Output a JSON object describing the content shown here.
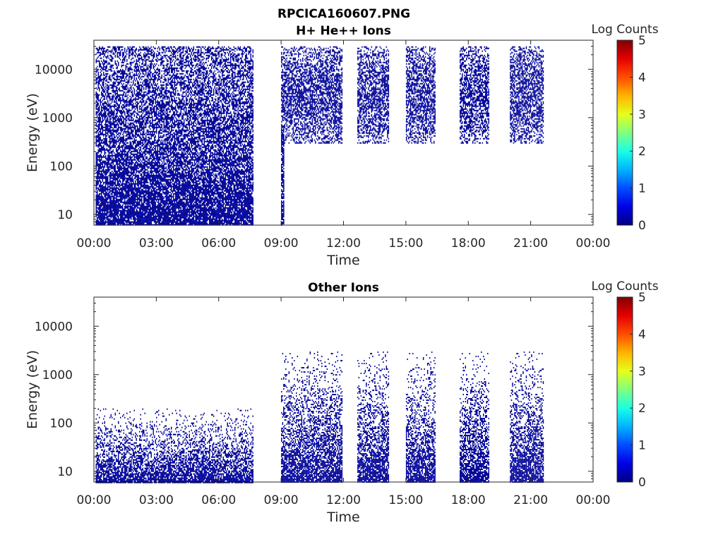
{
  "figure": {
    "title": "RPCICA160607.PNG"
  },
  "chart_data": [
    {
      "type": "heatmap",
      "title": "H+ He++ Ions",
      "xlabel": "Time",
      "ylabel": "Energy (eV)",
      "x_ticks": [
        "00:00",
        "03:00",
        "06:00",
        "09:00",
        "12:00",
        "15:00",
        "18:00",
        "21:00",
        "00:00"
      ],
      "y_ticks": [
        "10",
        "100",
        "1000",
        "10000"
      ],
      "y_scale": "log",
      "ylim": [
        6,
        40000
      ],
      "colorbar": {
        "label": "Log Counts",
        "ticks": [
          "0",
          "1",
          "2",
          "3",
          "4",
          "5"
        ],
        "range": [
          0,
          5
        ],
        "colormap": "jet"
      },
      "blocks": [
        {
          "t_start": "00:05",
          "t_end": "07:40",
          "e_min": 6,
          "e_max": 30000
        },
        {
          "t_start": "09:00",
          "t_end": "09:08",
          "e_min": 6,
          "e_max": 600
        },
        {
          "t_start": "09:00",
          "t_end": "11:55",
          "e_min": 300,
          "e_max": 30000
        },
        {
          "t_start": "12:40",
          "t_end": "14:10",
          "e_min": 300,
          "e_max": 30000
        },
        {
          "t_start": "15:00",
          "t_end": "16:25",
          "e_min": 300,
          "e_max": 30000
        },
        {
          "t_start": "17:35",
          "t_end": "19:00",
          "e_min": 300,
          "e_max": 30000
        },
        {
          "t_start": "20:00",
          "t_end": "21:35",
          "e_min": 300,
          "e_max": 30000
        }
      ]
    },
    {
      "type": "heatmap",
      "title": "Other Ions",
      "xlabel": "Time",
      "ylabel": "Energy (eV)",
      "x_ticks": [
        "00:00",
        "03:00",
        "06:00",
        "09:00",
        "12:00",
        "15:00",
        "18:00",
        "21:00",
        "00:00"
      ],
      "y_ticks": [
        "10",
        "100",
        "1000",
        "10000"
      ],
      "y_scale": "log",
      "ylim": [
        6,
        40000
      ],
      "colorbar": {
        "label": "Log Counts",
        "ticks": [
          "0",
          "1",
          "2",
          "3",
          "4",
          "5"
        ],
        "range": [
          0,
          5
        ],
        "colormap": "jet"
      },
      "blocks": [
        {
          "t_start": "00:05",
          "t_end": "07:40",
          "e_min": 6,
          "e_max": 200
        },
        {
          "t_start": "09:00",
          "t_end": "11:55",
          "e_min": 6,
          "e_max": 3000
        },
        {
          "t_start": "12:40",
          "t_end": "14:10",
          "e_min": 6,
          "e_max": 3000
        },
        {
          "t_start": "15:00",
          "t_end": "16:25",
          "e_min": 6,
          "e_max": 3000
        },
        {
          "t_start": "17:35",
          "t_end": "19:00",
          "e_min": 6,
          "e_max": 3000
        },
        {
          "t_start": "20:00",
          "t_end": "21:35",
          "e_min": 6,
          "e_max": 3000
        }
      ]
    }
  ]
}
